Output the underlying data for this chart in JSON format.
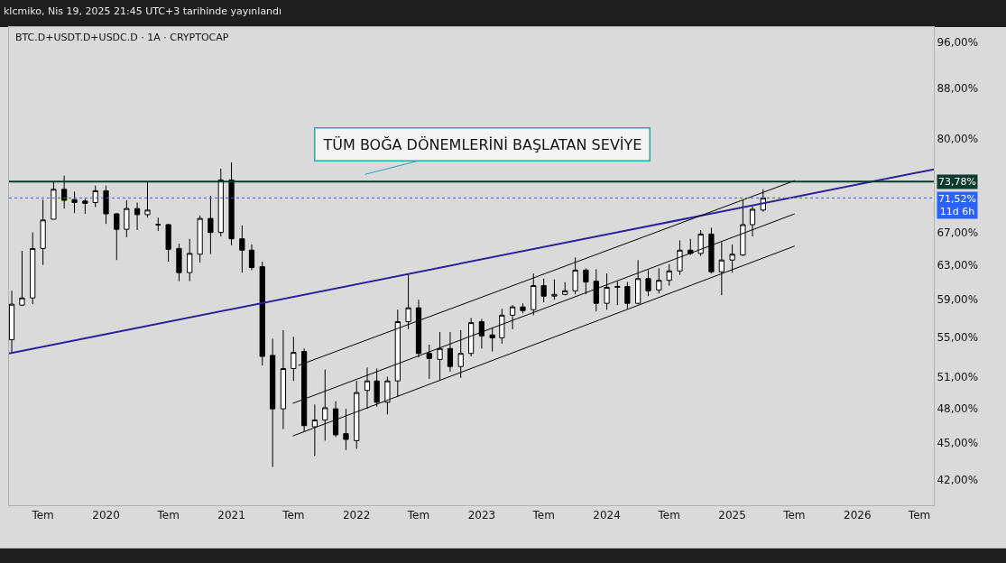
{
  "chart_data": {
    "type": "candlestick",
    "title": "BTC.D+USDT.D+USDC.D · 1A · CRYPTOCAP",
    "subtitle": "klcmiko, Nis 19, 2025 21:45 UTC+3 tarihinde yayınlandı",
    "x": [
      "2019-04",
      "2019-05",
      "2019-06",
      "2019-07",
      "2019-08",
      "2019-09",
      "2019-10",
      "2019-11",
      "2019-12",
      "2020-01",
      "2020-02",
      "2020-03",
      "2020-04",
      "2020-05",
      "2020-06",
      "2020-07",
      "2020-08",
      "2020-09",
      "2020-10",
      "2020-11",
      "2020-12",
      "2021-01",
      "2021-02",
      "2021-03",
      "2021-04",
      "2021-05",
      "2021-06",
      "2021-07",
      "2021-08",
      "2021-09",
      "2021-10",
      "2021-11",
      "2021-12",
      "2022-01",
      "2022-02",
      "2022-03",
      "2022-04",
      "2022-05",
      "2022-06",
      "2022-07",
      "2022-08",
      "2022-09",
      "2022-10",
      "2022-11",
      "2022-12",
      "2023-01",
      "2023-02",
      "2023-03",
      "2023-04",
      "2023-05",
      "2023-06",
      "2023-07",
      "2023-08",
      "2023-09",
      "2023-10",
      "2023-11",
      "2023-12",
      "2024-01",
      "2024-02",
      "2024-03",
      "2024-04",
      "2024-05",
      "2024-06",
      "2024-07",
      "2024-08",
      "2024-09",
      "2024-10",
      "2024-11",
      "2024-12",
      "2025-01",
      "2025-02",
      "2025-03",
      "2025-04"
    ],
    "ohlc": [
      [
        54.7,
        60.0,
        53.3,
        58.5
      ],
      [
        58.4,
        64.7,
        58.3,
        59.2
      ],
      [
        59.2,
        67.0,
        58.5,
        65.0
      ],
      [
        65.0,
        71.3,
        63.0,
        68.6
      ],
      [
        68.7,
        73.8,
        68.7,
        72.7
      ],
      [
        72.7,
        74.6,
        70.1,
        71.2
      ],
      [
        71.3,
        72.4,
        69.5,
        70.9
      ],
      [
        71.1,
        71.4,
        69.4,
        70.8
      ],
      [
        70.9,
        73.2,
        70.3,
        72.5
      ],
      [
        72.5,
        73.2,
        68.1,
        69.4
      ],
      [
        69.4,
        69.5,
        63.6,
        67.4
      ],
      [
        67.4,
        71.2,
        66.4,
        70.1
      ],
      [
        70.1,
        70.9,
        67.3,
        69.3
      ],
      [
        69.3,
        73.8,
        68.9,
        69.9
      ],
      [
        68.0,
        68.9,
        67.2,
        68.0
      ],
      [
        68.0,
        68.1,
        63.4,
        64.9
      ],
      [
        65.0,
        65.6,
        61.1,
        62.1
      ],
      [
        62.1,
        66.2,
        61.1,
        64.4
      ],
      [
        64.3,
        69.2,
        63.3,
        68.8
      ],
      [
        68.8,
        71.8,
        64.3,
        67.0
      ],
      [
        67.0,
        75.6,
        66.5,
        74.0
      ],
      [
        74.0,
        76.5,
        65.4,
        66.2
      ],
      [
        66.2,
        67.9,
        62.1,
        64.8
      ],
      [
        64.8,
        65.5,
        62.4,
        62.7
      ],
      [
        62.8,
        63.4,
        52.1,
        53.0
      ],
      [
        53.1,
        54.8,
        43.0,
        48.0
      ],
      [
        48.0,
        55.7,
        46.2,
        51.8
      ],
      [
        51.8,
        55.0,
        50.6,
        53.4
      ],
      [
        53.5,
        53.8,
        46.0,
        46.5
      ],
      [
        46.4,
        48.4,
        43.9,
        47.0
      ],
      [
        47.0,
        51.7,
        45.2,
        48.1
      ],
      [
        48.0,
        48.7,
        45.5,
        45.7
      ],
      [
        45.8,
        48.0,
        44.4,
        45.3
      ],
      [
        45.2,
        50.6,
        44.5,
        49.5
      ],
      [
        49.7,
        51.9,
        48.0,
        50.6
      ],
      [
        50.6,
        51.8,
        48.2,
        48.6
      ],
      [
        48.6,
        51.0,
        47.5,
        50.6
      ],
      [
        50.6,
        57.9,
        49.1,
        56.6
      ],
      [
        56.6,
        62.0,
        55.8,
        58.1
      ],
      [
        58.1,
        59.0,
        52.9,
        53.3
      ],
      [
        53.3,
        54.2,
        50.8,
        52.8
      ],
      [
        52.7,
        55.5,
        50.6,
        53.8
      ],
      [
        53.8,
        55.5,
        51.5,
        52.0
      ],
      [
        52.0,
        55.7,
        50.9,
        53.3
      ],
      [
        53.3,
        57.0,
        53.0,
        56.5
      ],
      [
        56.6,
        56.9,
        53.8,
        55.1
      ],
      [
        55.2,
        56.0,
        53.5,
        54.9
      ],
      [
        54.9,
        58.0,
        54.3,
        57.3
      ],
      [
        57.3,
        58.4,
        55.8,
        58.2
      ],
      [
        58.2,
        58.6,
        57.5,
        57.8
      ],
      [
        57.9,
        62.0,
        57.3,
        60.6
      ],
      [
        60.6,
        61.4,
        58.7,
        59.4
      ],
      [
        59.4,
        61.3,
        59.0,
        59.6
      ],
      [
        59.6,
        61.0,
        59.5,
        60.0
      ],
      [
        60.0,
        63.9,
        59.6,
        62.4
      ],
      [
        62.4,
        62.6,
        59.6,
        61.0
      ],
      [
        61.1,
        62.5,
        57.7,
        58.6
      ],
      [
        58.6,
        62.0,
        57.9,
        60.4
      ],
      [
        60.4,
        61.1,
        58.4,
        60.5
      ],
      [
        60.5,
        61.0,
        58.0,
        58.6
      ],
      [
        58.6,
        63.6,
        58.5,
        61.4
      ],
      [
        61.4,
        62.4,
        59.4,
        60.0
      ],
      [
        60.1,
        62.6,
        59.7,
        61.2
      ],
      [
        61.2,
        63.1,
        60.6,
        62.3
      ],
      [
        62.3,
        66.0,
        61.8,
        64.8
      ],
      [
        64.8,
        66.2,
        64.2,
        64.4
      ],
      [
        64.4,
        67.3,
        64.1,
        66.8
      ],
      [
        66.8,
        67.6,
        62.0,
        62.2
      ],
      [
        62.2,
        65.8,
        59.5,
        63.6
      ],
      [
        63.6,
        65.5,
        62.1,
        64.3
      ],
      [
        64.2,
        71.2,
        64.1,
        68.0
      ],
      [
        68.0,
        70.4,
        66.5,
        70.0
      ],
      [
        69.9,
        72.7,
        69.7,
        71.52
      ]
    ],
    "series": [
      {
        "type": "line",
        "color": "#2e1f9c",
        "x": [
          "2019-03-24",
          "2026-08-12"
        ],
        "values": [
          53.3,
          75.5
        ]
      },
      {
        "type": "line",
        "color": "#000000",
        "x": [
          "2021-07-15",
          "2025-07-02"
        ],
        "values": [
          52.1,
          73.9
        ]
      },
      {
        "type": "line",
        "color": "#000000",
        "x": [
          "2021-06-29",
          "2025-07-02"
        ],
        "values": [
          48.5,
          69.4
        ]
      },
      {
        "type": "line",
        "color": "#000000",
        "x": [
          "2021-06-29",
          "2025-07-02"
        ],
        "values": [
          45.6,
          65.3
        ]
      }
    ],
    "ref_lines": [
      {
        "axis": "y",
        "value": 73.78,
        "label": "73,78%",
        "color": "#0b3b2c",
        "line_style": "solid"
      },
      {
        "axis": "y",
        "value": 71.52,
        "label": "71,52%\n11d 6h",
        "color": "#2962ff",
        "line_style": "dotted"
      }
    ],
    "annotations": [
      "TÜM BOĞA DÖNEMLERİNİ BAŞLATAN SEVİYE"
    ],
    "log": true,
    "grid": false,
    "xlim": [
      "2019-03-24",
      "2026-08-12"
    ],
    "xticks": [
      {
        "value": "2019-07",
        "label": "Tem"
      },
      {
        "value": "2020-01",
        "label": "2020"
      },
      {
        "value": "2020-07",
        "label": "Tem"
      },
      {
        "value": "2021-01",
        "label": "2021"
      },
      {
        "value": "2021-07",
        "label": "Tem"
      },
      {
        "value": "2022-01",
        "label": "2022"
      },
      {
        "value": "2022-07",
        "label": "Tem"
      },
      {
        "value": "2023-01",
        "label": "2023"
      },
      {
        "value": "2023-07",
        "label": "Tem"
      },
      {
        "value": "2024-01",
        "label": "2024"
      },
      {
        "value": "2024-07",
        "label": "Tem"
      },
      {
        "value": "2025-01",
        "label": "2025"
      },
      {
        "value": "2025-07",
        "label": "Tem"
      },
      {
        "value": "2026-01",
        "label": "2026"
      },
      {
        "value": "2026-07",
        "label": "Tem"
      }
    ],
    "ylim": [
      40.0,
      98.8
    ],
    "yticks": [
      {
        "value": 42,
        "label": "42,00%"
      },
      {
        "value": 45,
        "label": "45,00%"
      },
      {
        "value": 48,
        "label": "48,00%"
      },
      {
        "value": 51,
        "label": "51,00%"
      },
      {
        "value": 55,
        "label": "55,00%"
      },
      {
        "value": 59,
        "label": "59,00%"
      },
      {
        "value": 63,
        "label": "63,00%"
      },
      {
        "value": 67,
        "label": "67,00%"
      },
      {
        "value": 80,
        "label": "80,00%"
      },
      {
        "value": 88,
        "label": "88,00%"
      },
      {
        "value": 96,
        "label": "96,00%"
      }
    ]
  }
}
